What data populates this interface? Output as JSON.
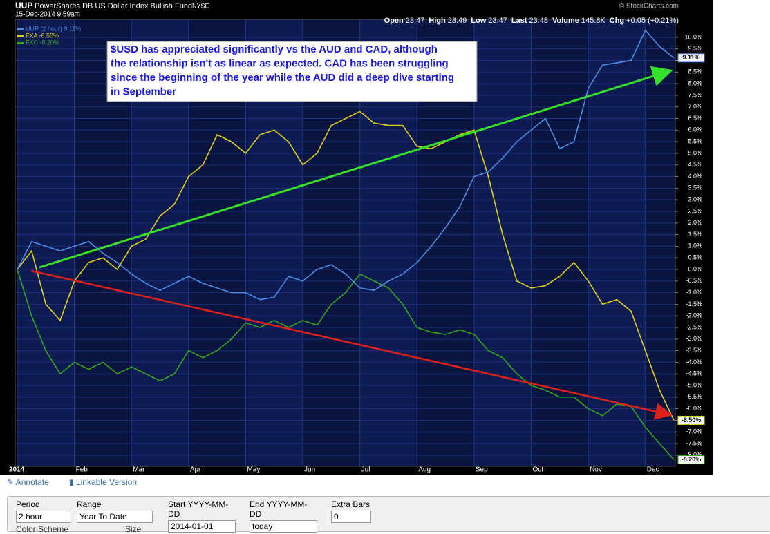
{
  "chart_data": {
    "type": "line",
    "title": "UUP",
    "subtitle": "PowerShares DB US Dollar Index Bullish Fund",
    "exchange": "NYSE",
    "date": "15-Dec-2014 9:59am",
    "source": "© StockCharts.com",
    "quote": [
      {
        "label": "Open",
        "value": "23.47"
      },
      {
        "label": "High",
        "value": "23.49"
      },
      {
        "label": "Low",
        "value": "23.47"
      },
      {
        "label": "Last",
        "value": "23.48"
      },
      {
        "label": "Volume",
        "value": "145.8K"
      },
      {
        "label": "Chg",
        "value": "+0.05 (+0.21%)"
      }
    ],
    "annotation": [
      "$USD has appreciated significantly vs the AUD and CAD, although",
      "the relationship isn't as linear as expected. CAD has been struggling",
      "since the beginning of the year while the AUD did a deep dive starting",
      "in September"
    ],
    "categories": [
      "2014",
      null,
      null,
      null,
      "Feb",
      null,
      null,
      null,
      "Mar",
      null,
      null,
      null,
      "Apr",
      null,
      null,
      null,
      "May",
      null,
      null,
      null,
      "Jun",
      null,
      null,
      null,
      "Jul",
      null,
      null,
      null,
      "Aug",
      null,
      null,
      null,
      "Sep",
      null,
      null,
      null,
      "Oct",
      null,
      null,
      null,
      "Nov",
      null,
      null,
      null,
      "Dec",
      null,
      null
    ],
    "series": [
      {
        "name": "UUP (2 hour) 9.11%",
        "color": "#4a8ee8",
        "values": [
          0,
          1.2,
          1.0,
          0.8,
          1.0,
          1.2,
          0.7,
          0.3,
          -0.2,
          -0.6,
          -0.9,
          -0.6,
          -0.3,
          -0.6,
          -0.8,
          -1.0,
          -1.0,
          -1.3,
          -1.2,
          -0.3,
          -0.5,
          0.0,
          0.2,
          -0.2,
          -0.8,
          -0.9,
          -0.5,
          -0.2,
          0.3,
          1.0,
          1.8,
          2.7,
          4.0,
          4.2,
          4.8,
          5.5,
          6.0,
          6.5,
          5.2,
          5.5,
          7.8,
          8.8,
          8.9,
          9.0,
          10.3,
          9.6,
          9.11
        ],
        "value_labels": [
          null,
          null,
          null,
          null,
          null,
          null,
          null,
          null,
          null,
          null,
          null,
          null,
          null,
          null,
          null,
          null,
          null,
          null,
          null,
          null,
          null,
          null,
          null,
          null,
          null,
          null,
          null,
          null,
          null,
          null,
          null,
          null,
          null,
          null,
          null,
          null,
          null,
          null,
          null,
          null,
          null,
          null,
          null,
          null,
          null,
          null,
          "9.11%"
        ]
      },
      {
        "name": "FXA -6.50%",
        "color": "#e3cf1c",
        "values": [
          0,
          0.8,
          -1.5,
          -2.2,
          -0.5,
          0.3,
          0.5,
          0.0,
          1.0,
          1.3,
          2.3,
          2.8,
          4.0,
          4.5,
          5.8,
          5.5,
          5.0,
          5.8,
          6.0,
          5.5,
          4.5,
          5.0,
          6.2,
          6.5,
          6.8,
          6.3,
          6.2,
          6.2,
          5.3,
          5.2,
          5.5,
          5.8,
          6.0,
          4.0,
          1.5,
          -0.5,
          -0.8,
          -0.7,
          -0.3,
          0.3,
          -0.5,
          -1.5,
          -1.3,
          -1.8,
          -3.5,
          -5.2,
          -6.5
        ],
        "value_labels": [
          null,
          null,
          null,
          null,
          null,
          null,
          null,
          null,
          null,
          null,
          null,
          null,
          null,
          null,
          null,
          null,
          null,
          null,
          null,
          null,
          null,
          null,
          null,
          null,
          null,
          null,
          null,
          null,
          null,
          null,
          null,
          null,
          null,
          null,
          null,
          null,
          null,
          null,
          null,
          null,
          null,
          null,
          null,
          null,
          null,
          null,
          "-6.50%"
        ]
      },
      {
        "name": "FXC -8.20%",
        "color": "#33a818",
        "values": [
          0,
          -2.0,
          -3.5,
          -4.5,
          -4.0,
          -4.3,
          -4.0,
          -4.5,
          -4.2,
          -4.5,
          -4.8,
          -4.5,
          -3.5,
          -3.8,
          -3.5,
          -3.0,
          -2.3,
          -2.5,
          -2.2,
          -2.5,
          -2.2,
          -2.4,
          -1.5,
          -1.0,
          -0.2,
          -0.5,
          -0.8,
          -1.5,
          -2.5,
          -2.7,
          -2.8,
          -2.6,
          -2.8,
          -3.5,
          -3.8,
          -4.5,
          -5.0,
          -5.2,
          -5.5,
          -5.5,
          -6.0,
          -6.3,
          -5.8,
          -5.9,
          -6.8,
          -7.5,
          -8.2
        ],
        "value_labels": [
          null,
          null,
          null,
          null,
          null,
          null,
          null,
          null,
          null,
          null,
          null,
          null,
          null,
          null,
          null,
          null,
          null,
          null,
          null,
          null,
          null,
          null,
          null,
          null,
          null,
          null,
          null,
          null,
          null,
          null,
          null,
          null,
          null,
          null,
          null,
          null,
          null,
          null,
          null,
          null,
          null,
          null,
          null,
          null,
          null,
          null,
          "-8.20%"
        ]
      }
    ],
    "ylim": [
      -8.48,
      10.77
    ],
    "yticks": [
      {
        "value": -8.0,
        "label": "-8.0%"
      },
      {
        "value": -7.5,
        "label": "-7.5%"
      },
      {
        "value": -7.0,
        "label": "-7.0%"
      },
      {
        "value": -6.5,
        "label": "-6.5%"
      },
      {
        "value": -6.0,
        "label": "-6.0%"
      },
      {
        "value": -5.5,
        "label": "-5.5%"
      },
      {
        "value": -5.0,
        "label": "-5.0%"
      },
      {
        "value": -4.5,
        "label": "-4.5%"
      },
      {
        "value": -4.0,
        "label": "-4.0%"
      },
      {
        "value": -3.5,
        "label": "-3.5%"
      },
      {
        "value": -3.0,
        "label": "-3.0%"
      },
      {
        "value": -2.5,
        "label": "-2.5%"
      },
      {
        "value": -2.0,
        "label": "-2.0%"
      },
      {
        "value": -1.5,
        "label": "-1.5%"
      },
      {
        "value": -1.0,
        "label": "-1.0%"
      },
      {
        "value": -0.5,
        "label": "-0.5%"
      },
      {
        "value": 0,
        "label": "0.0%"
      },
      {
        "value": 0.5,
        "label": "0.5%"
      },
      {
        "value": 1.0,
        "label": "1.0%"
      },
      {
        "value": 1.5,
        "label": "1.5%"
      },
      {
        "value": 2.0,
        "label": "2.0%"
      },
      {
        "value": 2.5,
        "label": "2.5%"
      },
      {
        "value": 3.0,
        "label": "3.0%"
      },
      {
        "value": 3.5,
        "label": "3.5%"
      },
      {
        "value": 4.0,
        "label": "4.0%"
      },
      {
        "value": 4.5,
        "label": "4.5%"
      },
      {
        "value": 5.0,
        "label": "5.0%"
      },
      {
        "value": 5.5,
        "label": "5.5%"
      },
      {
        "value": 6.0,
        "label": "6.0%"
      },
      {
        "value": 6.5,
        "label": "6.5%"
      },
      {
        "value": 7.0,
        "label": "7.0%"
      },
      {
        "value": 7.5,
        "label": "7.5%"
      },
      {
        "value": 8.0,
        "label": "8.0%"
      },
      {
        "value": 8.5,
        "label": "8.5%"
      },
      {
        "value": 9.0,
        "label": "9.0%"
      },
      {
        "value": 9.5,
        "label": "9.5%"
      },
      {
        "value": 10.0,
        "label": "10.0%"
      }
    ],
    "grid": true
  },
  "ui": {
    "links": [
      "Annotate",
      "Linkable Version"
    ],
    "fields": [
      {
        "label": "Period",
        "value": "2 hour"
      },
      {
        "label": "Range",
        "value": "Year To Date"
      },
      {
        "label": "Start YYYY-MM-DD",
        "value": "2014-01-01"
      },
      {
        "label": "End YYYY-MM-DD",
        "value": "today"
      },
      {
        "label": "Extra Bars",
        "value": "0"
      }
    ],
    "more": [
      "Color Scheme",
      "Size"
    ]
  }
}
